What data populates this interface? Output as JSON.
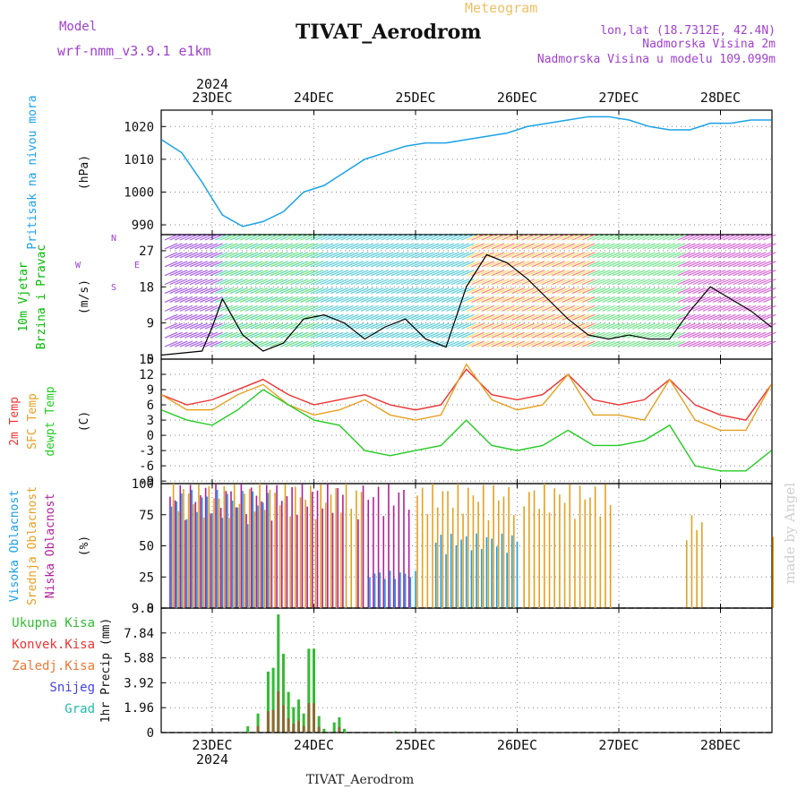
{
  "header": {
    "model_label": "Model",
    "model_name": "wrf-nmm_v3.9.1 e1km",
    "meteogram_label": "Meteogram",
    "station_title": "TIVAT_Aerodrom",
    "lonlat": "lon,lat (18.7312E, 42.4N)",
    "altitude": "Nadmorska Visina 2m",
    "model_altitude": "Nadmorska Visina u modelu 109.099m",
    "footer_station": "TIVAT_Aerodrom",
    "watermark": "made by Angel"
  },
  "colors": {
    "pressure": "#1aa3e6",
    "wind_label": "#00bb00",
    "temp": "#ee3333",
    "sfc_temp": "#e6a020",
    "dewpoint": "#22cc22",
    "high_cloud": "#1a9ee6",
    "mid_cloud": "#e6a020",
    "low_cloud": "#b0219a",
    "total_precip": "#33bb33",
    "conv_precip": "#ee3333",
    "frozen_precip": "#ee7733",
    "snow": "#4444dd",
    "graupel": "#22bbaa",
    "header_purple": "#a040d0",
    "header_orange": "#f0c060"
  },
  "chart_data": [
    {
      "type": "line",
      "panel": "pressure",
      "ylabel_lines": [
        "Pritisak na nivou mora"
      ],
      "units": "(hPa)",
      "yticks": [
        990,
        1000,
        1010,
        1020
      ],
      "ylim": [
        987,
        1025
      ],
      "x_day": [
        0,
        0.2,
        0.4,
        0.6,
        0.8,
        1.0,
        1.2,
        1.4,
        1.6,
        1.8,
        2.0,
        2.2,
        2.4,
        2.6,
        2.8,
        3.0,
        3.2,
        3.4,
        3.6,
        3.8,
        4.0,
        4.2,
        4.4,
        4.6,
        4.8,
        5.0,
        5.2,
        5.4,
        5.6,
        5.8,
        6.0
      ],
      "values": [
        1016,
        1012,
        1003,
        993,
        989.5,
        991,
        994,
        1000,
        1002,
        1006,
        1010,
        1012,
        1014,
        1015,
        1015,
        1016,
        1017,
        1018,
        1020,
        1021,
        1022,
        1023,
        1023,
        1022,
        1020,
        1019,
        1019,
        1021,
        1021,
        1022,
        1022
      ],
      "grid": true
    },
    {
      "type": "line",
      "panel": "wind",
      "ylabel_lines": [
        "10m Vjetar",
        "Brzina i Pravac"
      ],
      "units": "(m/s)",
      "direction_legend": [
        "N",
        "W",
        "E",
        "S"
      ],
      "yticks": [
        0,
        9,
        18,
        27
      ],
      "ylim": [
        0,
        31
      ],
      "series": [
        {
          "values_day": [
            0,
            0.4,
            0.5,
            0.6,
            0.8,
            1.0,
            1.2,
            1.4,
            1.6,
            1.8,
            2.0,
            2.2,
            2.4,
            2.6,
            2.8,
            3.0,
            3.2,
            3.4,
            3.6,
            3.8,
            4.0,
            4.2,
            4.4,
            4.6,
            4.8,
            5.0,
            5.2,
            5.4,
            5.6,
            5.8,
            6.0
          ],
          "speed": [
            1,
            2,
            8,
            15,
            6,
            2,
            4,
            10,
            11,
            9,
            5,
            8,
            10,
            5,
            3,
            18,
            26,
            24,
            20,
            15,
            10,
            6,
            5,
            6,
            5,
            5,
            12,
            18,
            15,
            12,
            8
          ]
        }
      ],
      "grid": true
    },
    {
      "type": "line",
      "panel": "temperature",
      "ylabel_lines": [
        "2m Temp",
        "SFC Temp",
        "dewpt Temp"
      ],
      "units": "(C)",
      "yticks": [
        -9,
        -6,
        -3,
        0,
        3,
        6,
        9,
        12,
        15
      ],
      "ylim": [
        -9.5,
        15
      ],
      "x_day": [
        0,
        0.25,
        0.5,
        0.75,
        1.0,
        1.25,
        1.5,
        1.75,
        2.0,
        2.25,
        2.5,
        2.75,
        3.0,
        3.25,
        3.5,
        3.75,
        4.0,
        4.25,
        4.5,
        4.75,
        5.0,
        5.25,
        5.5,
        5.75,
        6.0
      ],
      "series": [
        {
          "name": "2m Temp",
          "values": [
            8,
            6,
            7,
            9,
            11,
            8,
            6,
            7,
            8,
            6,
            5,
            6,
            13,
            8,
            7,
            8,
            12,
            7,
            6,
            7,
            11,
            6,
            4,
            3,
            10
          ]
        },
        {
          "name": "SFC Temp",
          "values": [
            8,
            5,
            5,
            8,
            10,
            6,
            4,
            5,
            7,
            4,
            3,
            4,
            14,
            7,
            5,
            6,
            12,
            4,
            4,
            3,
            11,
            3,
            1,
            1,
            10
          ]
        },
        {
          "name": "dewpt Temp",
          "values": [
            5,
            3,
            2,
            5,
            9,
            6,
            3,
            2,
            -3,
            -4,
            -3,
            -2,
            3,
            -2,
            -3,
            -2,
            1,
            -2,
            -2,
            -1,
            2,
            -6,
            -7,
            -7,
            -3
          ]
        }
      ],
      "grid": true
    },
    {
      "type": "bar",
      "panel": "cloud_cover",
      "ylabel_lines": [
        "Visoka Oblacnost",
        "Srednja Oblacnost",
        "Niska Oblacnost"
      ],
      "units": "(%)",
      "yticks": [
        0,
        25,
        50,
        75,
        100
      ],
      "ylim": [
        0,
        100
      ],
      "series": [
        {
          "name": "Visoka Oblacnost",
          "segments_day": [
            [
              0.1,
              1.1,
              95
            ],
            [
              2.05,
              2.5,
              30
            ],
            [
              2.7,
              3.5,
              60
            ]
          ]
        },
        {
          "name": "Srednja Oblacnost",
          "segments_day": [
            [
              0.1,
              2.0,
              100
            ],
            [
              2.5,
              3.45,
              100
            ],
            [
              3.55,
              4.4,
              100
            ],
            [
              5.15,
              5.3,
              75
            ],
            [
              6.0,
              6.02,
              80
            ]
          ]
        },
        {
          "name": "Niska Oblacnost",
          "segments_day": [
            [
              0.05,
              1.8,
              100
            ],
            [
              1.9,
              2.4,
              100
            ]
          ]
        }
      ],
      "grid": true
    },
    {
      "type": "bar",
      "panel": "precipitation",
      "ylabel_lines": [
        "Ukupna Kisa",
        "Konvek.Kisa",
        "Zaledj.Kisa",
        "Snijeg",
        "Grad"
      ],
      "units": "1hr Precip (mm)",
      "yticks": [
        0,
        1.96,
        3.92,
        5.88,
        7.84,
        9.8
      ],
      "ylim": [
        0,
        9.8
      ],
      "x_day": [
        0.85,
        0.95,
        1.05,
        1.1,
        1.15,
        1.2,
        1.25,
        1.3,
        1.35,
        1.4,
        1.45,
        1.5,
        1.55,
        1.6,
        1.7,
        1.75,
        1.8,
        2.3
      ],
      "values": [
        0.5,
        1.5,
        4.8,
        5.1,
        9.3,
        6.2,
        3.2,
        2.0,
        2.6,
        1.5,
        6.6,
        6.6,
        1.3,
        0.3,
        0.8,
        1.2,
        0.3,
        0.1
      ],
      "grid": true
    }
  ],
  "time_axis": {
    "day_labels": [
      "23DEC",
      "24DEC",
      "25DEC",
      "26DEC",
      "27DEC",
      "28DEC"
    ],
    "year_label": "2024"
  }
}
